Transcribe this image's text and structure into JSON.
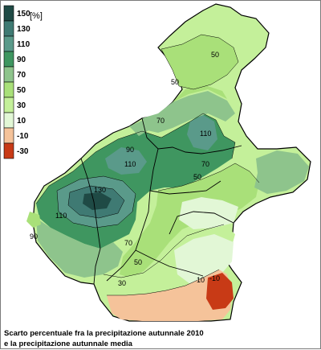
{
  "legend": {
    "unit": "[%]",
    "classes": [
      {
        "label": "150",
        "color": "#1f4a45"
      },
      {
        "label": "130",
        "color": "#3f7a73"
      },
      {
        "label": "110",
        "color": "#5a9a8a"
      },
      {
        "label": "90",
        "color": "#3f9660"
      },
      {
        "label": "70",
        "color": "#8ec48c"
      },
      {
        "label": "50",
        "color": "#a9e079"
      },
      {
        "label": "30",
        "color": "#c4f09a"
      },
      {
        "label": "10",
        "color": "#e2f7d6"
      },
      {
        "label": "-10",
        "color": "#f5c39a"
      },
      {
        "label": "-30",
        "color": "#c83a16"
      }
    ]
  },
  "isoline_labels": [
    "50",
    "50",
    "70",
    "110",
    "90",
    "110",
    "70",
    "50",
    "130",
    "110",
    "90",
    "70",
    "50",
    "30",
    "10",
    "-10"
  ],
  "caption": {
    "line1": "Scarto percentuale fra la precipitazione autunnale 2010",
    "line2": "e la precipitazione autunnale media"
  }
}
